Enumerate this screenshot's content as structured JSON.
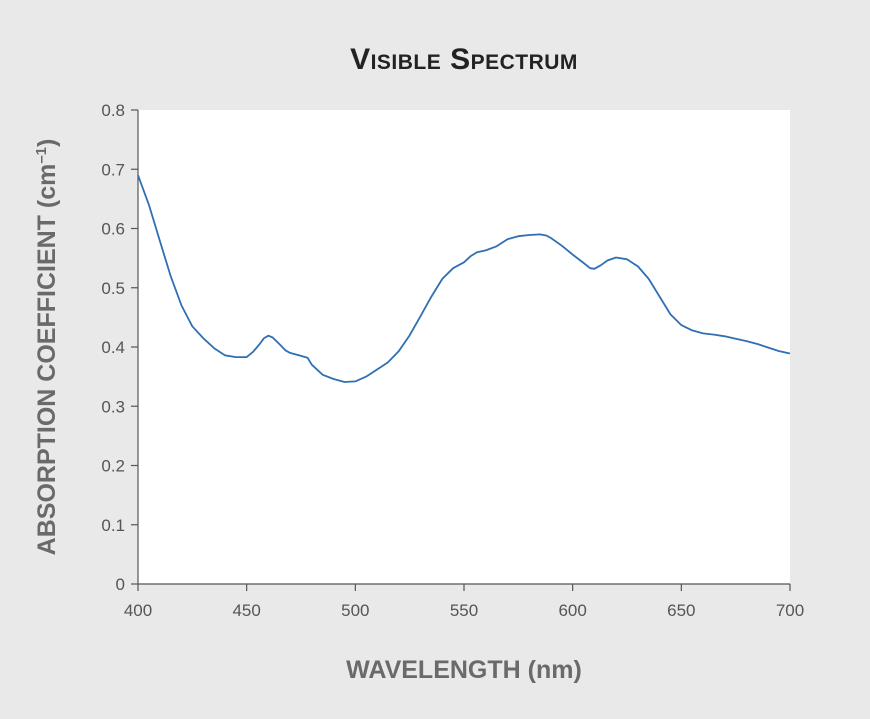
{
  "chart_data": {
    "type": "line",
    "title": "Visible Spectrum",
    "xlabel": "WAVELENGTH (nm)",
    "ylabel": "ABSORPTION COEFFICIENT (cm",
    "ylabel_superscript": "–1",
    "ylabel_close": ")",
    "xlim": [
      400,
      700
    ],
    "ylim": [
      0,
      0.8
    ],
    "xticks": [
      "400",
      "450",
      "500",
      "550",
      "600",
      "650",
      "700"
    ],
    "yticks": [
      "0",
      "0.1",
      "0.2",
      "0.3",
      "0.4",
      "0.5",
      "0.6",
      "0.7",
      "0.8"
    ],
    "grid": false,
    "line_color": "#2f6fb3",
    "series": [
      {
        "x": [
          400,
          405,
          410,
          415,
          420,
          425,
          430,
          435,
          440,
          445,
          450,
          453,
          456,
          458,
          460,
          462,
          465,
          468,
          470,
          475,
          478,
          480,
          485,
          490,
          495,
          500,
          505,
          510,
          515,
          520,
          525,
          530,
          535,
          540,
          545,
          550,
          553,
          556,
          560,
          565,
          570,
          575,
          580,
          585,
          588,
          590,
          595,
          600,
          605,
          608,
          610,
          613,
          616,
          620,
          625,
          630,
          635,
          640,
          645,
          650,
          655,
          660,
          665,
          670,
          675,
          680,
          685,
          690,
          695,
          700
        ],
        "y": [
          0.69,
          0.64,
          0.58,
          0.52,
          0.47,
          0.435,
          0.415,
          0.398,
          0.386,
          0.383,
          0.383,
          0.392,
          0.405,
          0.415,
          0.419,
          0.416,
          0.405,
          0.394,
          0.39,
          0.385,
          0.382,
          0.37,
          0.353,
          0.346,
          0.341,
          0.342,
          0.35,
          0.362,
          0.374,
          0.393,
          0.42,
          0.452,
          0.485,
          0.515,
          0.533,
          0.543,
          0.553,
          0.56,
          0.563,
          0.57,
          0.582,
          0.587,
          0.589,
          0.59,
          0.588,
          0.584,
          0.571,
          0.556,
          0.542,
          0.533,
          0.532,
          0.538,
          0.546,
          0.551,
          0.548,
          0.536,
          0.515,
          0.485,
          0.455,
          0.437,
          0.428,
          0.423,
          0.421,
          0.418,
          0.414,
          0.41,
          0.405,
          0.399,
          0.393,
          0.389
        ]
      }
    ]
  }
}
